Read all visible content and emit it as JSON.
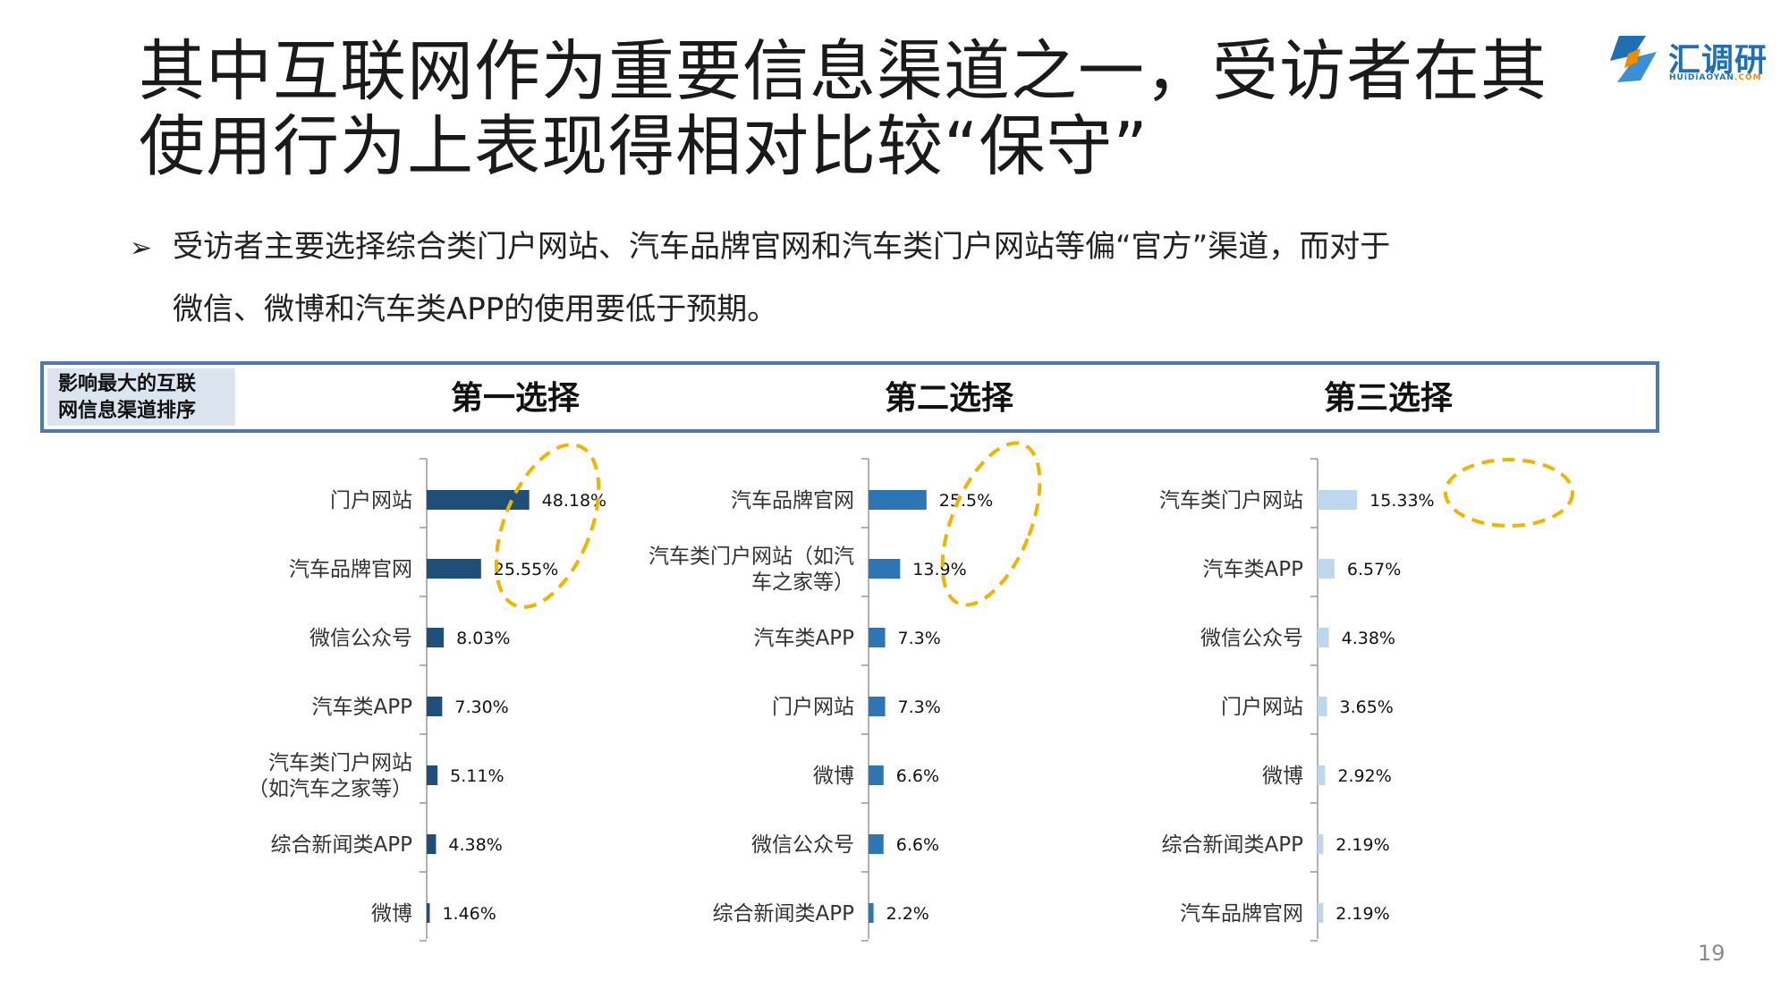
{
  "title": {
    "line1": "其中互联网作为重要信息渠道之一，受访者在其",
    "line2": "使用行为上表现得相对比较“保守”"
  },
  "logo": {
    "name": "汇调研",
    "sub_main": "HUiDiAOYAN",
    "sub_accent": ".COM"
  },
  "bullet": {
    "marker": "➢",
    "line1": "受访者主要选择综合类门户网站、汽车品牌官网和汽车类门户网站等偏“官方”渠道，而对于",
    "line2": "微信、微博和汽车类APP的使用要低于预期。"
  },
  "header": {
    "rank_label_line1": "影响最大的互联",
    "rank_label_line2": "网信息渠道排序",
    "choices": [
      "第一选择",
      "第二选择",
      "第三选择"
    ]
  },
  "colors": {
    "first": "#1f4e79",
    "second": "#2e75b6",
    "third": "#bdd7ee",
    "highlight": "#f0b400"
  },
  "chart_data": [
    {
      "type": "bar",
      "title": "第一选择",
      "categories": [
        [
          "门户网站"
        ],
        [
          "汽车品牌官网"
        ],
        [
          "微信公众号"
        ],
        [
          "汽车类APP"
        ],
        [
          "汽车类门户网站",
          "（如汽车之家等）"
        ],
        [
          "综合新闻类APP"
        ],
        [
          "微博"
        ]
      ],
      "values": [
        48.18,
        25.55,
        8.03,
        7.3,
        5.11,
        4.38,
        1.46
      ],
      "labels": [
        "48.18%",
        "25.55%",
        "8.03%",
        "7.30%",
        "5.11%",
        "4.38%",
        "1.46%"
      ],
      "xlim": [
        0,
        100
      ]
    },
    {
      "type": "bar",
      "title": "第二选择",
      "categories": [
        [
          "汽车品牌官网"
        ],
        [
          "汽车类门户网站（如汽",
          "车之家等）"
        ],
        [
          "汽车类APP"
        ],
        [
          "门户网站"
        ],
        [
          "微博"
        ],
        [
          "微信公众号"
        ],
        [
          "综合新闻类APP"
        ]
      ],
      "values": [
        25.5,
        13.9,
        7.3,
        7.3,
        6.6,
        6.6,
        2.2
      ],
      "labels": [
        "25.5%",
        "13.9%",
        "7.3%",
        "7.3%",
        "6.6%",
        "6.6%",
        "2.2%"
      ],
      "xlim": [
        0,
        100
      ]
    },
    {
      "type": "bar",
      "title": "第三选择",
      "categories": [
        [
          "汽车类门户网站"
        ],
        [
          "汽车类APP"
        ],
        [
          "微信公众号"
        ],
        [
          "门户网站"
        ],
        [
          "微博"
        ],
        [
          "综合新闻类APP"
        ],
        [
          "汽车品牌官网"
        ]
      ],
      "values": [
        15.33,
        6.57,
        4.38,
        3.65,
        2.92,
        2.19,
        2.19
      ],
      "labels": [
        "15.33%",
        "6.57%",
        "4.38%",
        "3.65%",
        "2.92%",
        "2.19%",
        "2.19%"
      ],
      "xlim": [
        0,
        50
      ]
    }
  ],
  "page_number": "19"
}
